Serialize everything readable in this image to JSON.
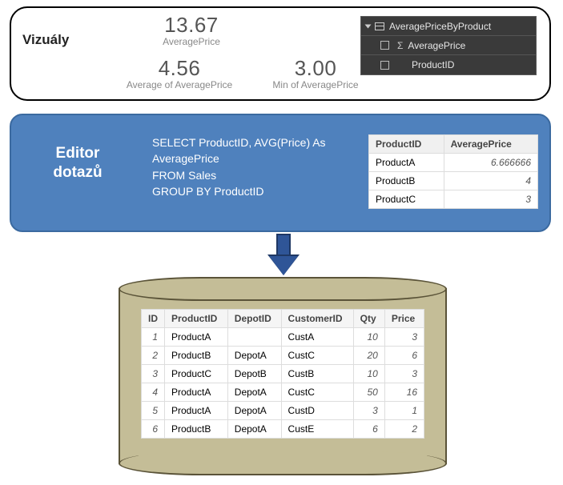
{
  "visuals": {
    "title": "Vizuály",
    "kpi1": {
      "value": "13.67",
      "label": "AveragePrice"
    },
    "kpi2": {
      "value": "4.56",
      "label": "Average of AveragePrice"
    },
    "kpi3": {
      "value": "3.00",
      "label": "Min of AveragePrice"
    },
    "fields": {
      "table_name": "AveragePriceByProduct",
      "measure": "AveragePrice",
      "column": "ProductID",
      "bg_color": "#3a3a3a",
      "text_color": "#e6e6e6"
    }
  },
  "editor": {
    "title": "Editor dotazů",
    "bg_color": "#4f81bd",
    "border_color": "#3b6aa0",
    "sql_lines": {
      "l1": "SELECT ProductID, AVG(Price) As",
      "l2": "AveragePrice",
      "l3": "FROM Sales",
      "l4": "GROUP BY ProductID"
    },
    "result": {
      "columns": {
        "c1": "ProductID",
        "c2": "AveragePrice"
      },
      "rows": [
        {
          "pid": "ProductA",
          "avg": "6.666666"
        },
        {
          "pid": "ProductB",
          "avg": "4"
        },
        {
          "pid": "ProductC",
          "avg": "3"
        }
      ]
    }
  },
  "arrow": {
    "fill_color": "#2f5597",
    "border_color": "#1f3864"
  },
  "database": {
    "fill_color": "#c4bd97",
    "border_color": "#5a5338",
    "table": {
      "columns": {
        "c1": "ID",
        "c2": "ProductID",
        "c3": "DepotID",
        "c4": "CustomerID",
        "c5": "Qty",
        "c6": "Price"
      },
      "rows": [
        {
          "id": "1",
          "pid": "ProductA",
          "depot": "",
          "cust": "CustA",
          "qty": "10",
          "price": "3"
        },
        {
          "id": "2",
          "pid": "ProductB",
          "depot": "DepotA",
          "cust": "CustC",
          "qty": "20",
          "price": "6"
        },
        {
          "id": "3",
          "pid": "ProductC",
          "depot": "DepotB",
          "cust": "CustB",
          "qty": "10",
          "price": "3"
        },
        {
          "id": "4",
          "pid": "ProductA",
          "depot": "DepotA",
          "cust": "CustC",
          "qty": "50",
          "price": "16"
        },
        {
          "id": "5",
          "pid": "ProductA",
          "depot": "DepotA",
          "cust": "CustD",
          "qty": "3",
          "price": "1"
        },
        {
          "id": "6",
          "pid": "ProductB",
          "depot": "DepotA",
          "cust": "CustE",
          "qty": "6",
          "price": "2"
        }
      ]
    }
  }
}
